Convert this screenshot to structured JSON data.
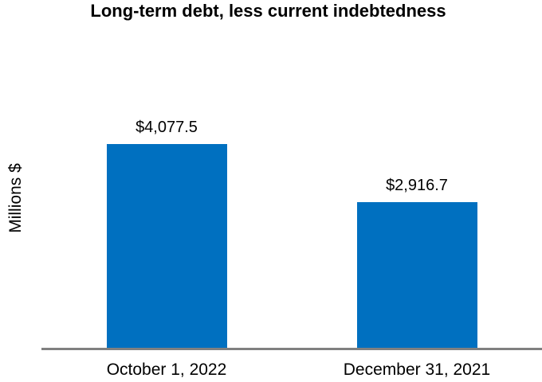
{
  "chart_data": {
    "type": "bar",
    "title": "Long-term debt, less current indebtedness",
    "xlabel": "",
    "ylabel": "Millions $",
    "categories": [
      "October 1, 2022",
      "December 31, 2021"
    ],
    "values": [
      4077.5,
      2916.7
    ],
    "value_labels": [
      "$4,077.5",
      "$2,916.7"
    ],
    "bar_color": "#0070C0",
    "axis_line_color": "#808080",
    "text_color": "#000000",
    "background_color": "#FFFFFF",
    "grid": false,
    "legend": false,
    "y_axis_ticks_visible": false
  }
}
